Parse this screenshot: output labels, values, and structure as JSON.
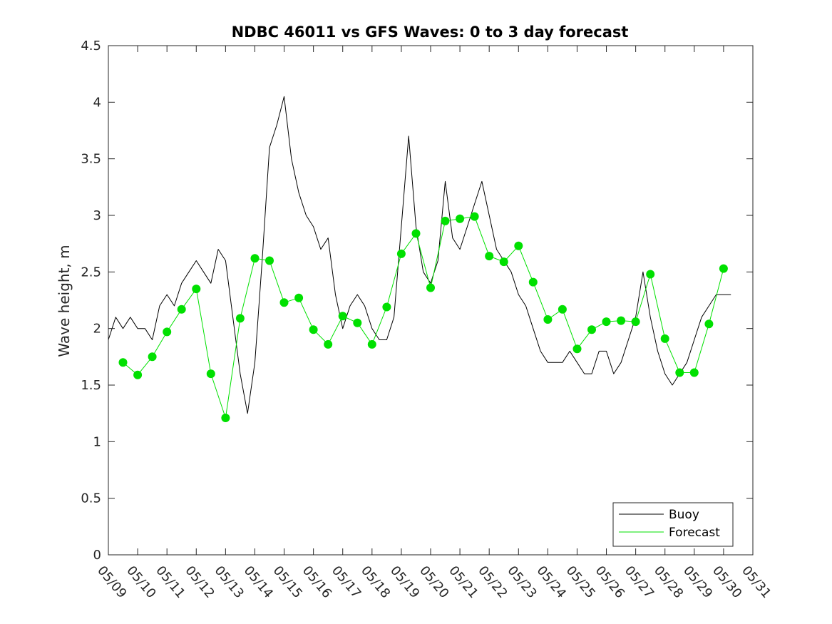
{
  "chart_data": {
    "type": "line",
    "title": "NDBC 46011 vs GFS Waves: 0 to 3 day forecast",
    "xlabel": "",
    "ylabel": "Wave height, m",
    "xlim": [
      "05/09",
      "05/31"
    ],
    "ylim": [
      0,
      4.5
    ],
    "x_ticks": [
      "05/09",
      "05/10",
      "05/11",
      "05/12",
      "05/13",
      "05/14",
      "05/15",
      "05/16",
      "05/17",
      "05/18",
      "05/19",
      "05/20",
      "05/21",
      "05/22",
      "05/23",
      "05/24",
      "05/25",
      "05/26",
      "05/27",
      "05/28",
      "05/29",
      "05/30",
      "05/31"
    ],
    "y_ticks": [
      "0",
      "0.5",
      "1",
      "1.5",
      "2",
      "2.5",
      "3",
      "3.5",
      "4",
      "4.5"
    ],
    "grid": false,
    "legend_position": "bottom-right",
    "colors": {
      "buoy": "#000000",
      "forecast": "#00e000",
      "axes": "#262626"
    },
    "series": [
      {
        "name": "Buoy",
        "x": [
          "05/09 00:00",
          "05/09 06:00",
          "05/09 12:00",
          "05/09 18:00",
          "05/10 00:00",
          "05/10 06:00",
          "05/10 12:00",
          "05/10 18:00",
          "05/11 00:00",
          "05/11 06:00",
          "05/11 12:00",
          "05/11 18:00",
          "05/12 00:00",
          "05/12 06:00",
          "05/12 12:00",
          "05/12 18:00",
          "05/13 00:00",
          "05/13 06:00",
          "05/13 12:00",
          "05/13 18:00",
          "05/14 00:00",
          "05/14 06:00",
          "05/14 12:00",
          "05/14 18:00",
          "05/15 00:00",
          "05/15 06:00",
          "05/15 12:00",
          "05/15 18:00",
          "05/16 00:00",
          "05/16 06:00",
          "05/16 12:00",
          "05/16 18:00",
          "05/17 00:00",
          "05/17 06:00",
          "05/17 12:00",
          "05/17 18:00",
          "05/18 00:00",
          "05/18 06:00",
          "05/18 12:00",
          "05/18 18:00",
          "05/19 00:00",
          "05/19 06:00",
          "05/19 12:00",
          "05/19 18:00",
          "05/20 00:00",
          "05/20 06:00",
          "05/20 12:00",
          "05/20 18:00",
          "05/21 00:00",
          "05/21 06:00",
          "05/21 12:00",
          "05/21 18:00",
          "05/22 00:00",
          "05/22 06:00",
          "05/22 12:00",
          "05/22 18:00",
          "05/23 00:00",
          "05/23 06:00",
          "05/23 12:00",
          "05/23 18:00",
          "05/24 00:00",
          "05/24 06:00",
          "05/24 12:00",
          "05/24 18:00",
          "05/25 00:00",
          "05/25 06:00",
          "05/25 12:00",
          "05/25 18:00",
          "05/26 00:00",
          "05/26 06:00",
          "05/26 12:00",
          "05/26 18:00",
          "05/27 00:00",
          "05/27 06:00",
          "05/27 12:00",
          "05/27 18:00",
          "05/28 00:00",
          "05/28 06:00",
          "05/28 12:00",
          "05/28 18:00",
          "05/29 00:00",
          "05/29 06:00",
          "05/29 12:00",
          "05/29 18:00",
          "05/30 00:00",
          "05/30 06:00"
        ],
        "values": [
          1.9,
          2.1,
          2.0,
          2.1,
          2.0,
          2.0,
          1.9,
          2.2,
          2.3,
          2.2,
          2.4,
          2.5,
          2.6,
          2.5,
          2.4,
          2.7,
          2.6,
          2.1,
          1.6,
          1.25,
          1.7,
          2.6,
          3.6,
          3.8,
          4.05,
          3.5,
          3.2,
          3.0,
          2.9,
          2.7,
          2.8,
          2.3,
          2.0,
          2.2,
          2.3,
          2.2,
          2.0,
          1.9,
          1.9,
          2.1,
          2.9,
          3.7,
          2.9,
          2.5,
          2.4,
          2.6,
          3.3,
          2.8,
          2.7,
          2.9,
          3.1,
          3.3,
          3.0,
          2.7,
          2.6,
          2.5,
          2.3,
          2.2,
          2.0,
          1.8,
          1.7,
          1.7,
          1.7,
          1.8,
          1.7,
          1.6,
          1.6,
          1.8,
          1.8,
          1.6,
          1.7,
          1.9,
          2.1,
          2.5,
          2.1,
          1.8,
          1.6,
          1.5,
          1.6,
          1.7,
          1.9,
          2.1,
          2.2,
          2.3,
          2.3,
          2.3
        ]
      },
      {
        "name": "Forecast",
        "x": [
          "05/09 12:00",
          "05/10 00:00",
          "05/10 12:00",
          "05/11 00:00",
          "05/11 12:00",
          "05/12 00:00",
          "05/12 12:00",
          "05/13 00:00",
          "05/13 12:00",
          "05/14 00:00",
          "05/14 12:00",
          "05/15 00:00",
          "05/15 12:00",
          "05/16 00:00",
          "05/16 12:00",
          "05/17 00:00",
          "05/17 12:00",
          "05/18 00:00",
          "05/18 12:00",
          "05/19 00:00",
          "05/19 12:00",
          "05/20 00:00",
          "05/20 12:00",
          "05/21 00:00",
          "05/21 12:00",
          "05/22 00:00",
          "05/22 12:00",
          "05/23 00:00",
          "05/23 12:00",
          "05/24 00:00",
          "05/24 12:00",
          "05/25 00:00",
          "05/25 12:00",
          "05/26 00:00",
          "05/26 12:00",
          "05/27 00:00",
          "05/27 12:00",
          "05/28 00:00",
          "05/28 12:00",
          "05/29 00:00",
          "05/29 12:00",
          "05/30 00:00"
        ],
        "values": [
          1.7,
          1.59,
          1.75,
          1.97,
          2.17,
          2.35,
          1.6,
          1.21,
          2.09,
          2.62,
          2.6,
          2.23,
          2.27,
          1.99,
          1.86,
          2.11,
          2.05,
          1.86,
          2.19,
          2.66,
          2.84,
          2.36,
          2.95,
          2.97,
          2.99,
          2.64,
          2.59,
          2.73,
          2.41,
          2.08,
          2.17,
          1.82,
          1.99,
          2.06,
          2.07,
          2.06,
          2.48,
          1.91,
          1.61,
          1.61,
          2.04,
          2.53
        ]
      }
    ]
  }
}
